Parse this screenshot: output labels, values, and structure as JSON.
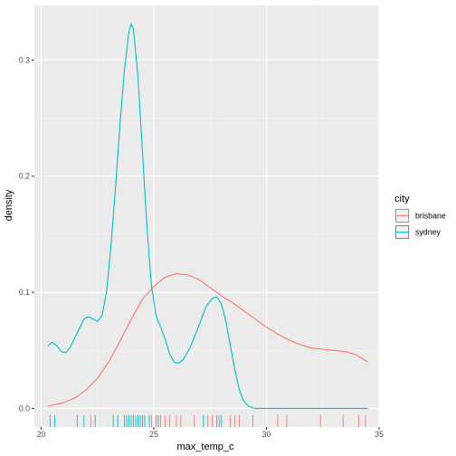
{
  "chart_data": {
    "type": "density",
    "xlabel": "max_temp_c",
    "ylabel": "density",
    "xlim": [
      19.7,
      35.0
    ],
    "ylim": [
      -0.016,
      0.347
    ],
    "x_ticks": [
      20,
      25,
      30,
      35
    ],
    "x_tick_labels": [
      "20",
      "25",
      "30",
      "35"
    ],
    "y_ticks": [
      0.0,
      0.1,
      0.2,
      0.3
    ],
    "y_tick_labels": [
      "0.0",
      "0.1",
      "0.2",
      "0.3"
    ],
    "grid": true,
    "legend": {
      "title": "city",
      "placement": "right",
      "entries": [
        "brisbane",
        "sydney"
      ]
    },
    "series": [
      {
        "name": "brisbane",
        "color": "#F8766D",
        "points": [
          [
            20.3,
            0.002
          ],
          [
            21.0,
            0.005
          ],
          [
            21.5,
            0.009
          ],
          [
            22.0,
            0.016
          ],
          [
            22.5,
            0.026
          ],
          [
            23.0,
            0.04
          ],
          [
            23.5,
            0.058
          ],
          [
            24.0,
            0.077
          ],
          [
            24.5,
            0.094
          ],
          [
            25.0,
            0.105
          ],
          [
            25.5,
            0.113
          ],
          [
            26.0,
            0.116
          ],
          [
            26.5,
            0.115
          ],
          [
            27.0,
            0.111
          ],
          [
            27.5,
            0.104
          ],
          [
            28.0,
            0.097
          ],
          [
            28.5,
            0.091
          ],
          [
            29.0,
            0.084
          ],
          [
            29.5,
            0.077
          ],
          [
            30.0,
            0.07
          ],
          [
            30.5,
            0.064
          ],
          [
            31.0,
            0.059
          ],
          [
            31.5,
            0.055
          ],
          [
            32.0,
            0.052
          ],
          [
            32.5,
            0.051
          ],
          [
            33.0,
            0.05
          ],
          [
            33.5,
            0.049
          ],
          [
            34.0,
            0.046
          ],
          [
            34.5,
            0.04
          ]
        ],
        "rug": [
          22.2,
          24.9,
          25.1,
          25.3,
          25.5,
          25.7,
          26.0,
          26.2,
          26.8,
          27.4,
          27.6,
          27.9,
          28.4,
          28.6,
          28.8,
          29.4,
          30.5,
          30.9,
          32.4,
          33.4,
          34.1,
          34.4
        ]
      },
      {
        "name": "sydney",
        "color": "#00BFC4",
        "points": [
          [
            20.3,
            0.054
          ],
          [
            20.5,
            0.057
          ],
          [
            20.7,
            0.054
          ],
          [
            20.9,
            0.049
          ],
          [
            21.1,
            0.048
          ],
          [
            21.3,
            0.053
          ],
          [
            21.6,
            0.065
          ],
          [
            21.9,
            0.077
          ],
          [
            22.1,
            0.079
          ],
          [
            22.3,
            0.077
          ],
          [
            22.5,
            0.075
          ],
          [
            22.7,
            0.08
          ],
          [
            22.9,
            0.1
          ],
          [
            23.1,
            0.14
          ],
          [
            23.3,
            0.19
          ],
          [
            23.5,
            0.245
          ],
          [
            23.7,
            0.292
          ],
          [
            23.9,
            0.325
          ],
          [
            24.0,
            0.331
          ],
          [
            24.1,
            0.326
          ],
          [
            24.3,
            0.285
          ],
          [
            24.5,
            0.22
          ],
          [
            24.7,
            0.155
          ],
          [
            24.9,
            0.105
          ],
          [
            25.1,
            0.08
          ],
          [
            25.3,
            0.07
          ],
          [
            25.5,
            0.06
          ],
          [
            25.7,
            0.047
          ],
          [
            25.9,
            0.04
          ],
          [
            26.1,
            0.039
          ],
          [
            26.3,
            0.042
          ],
          [
            26.6,
            0.052
          ],
          [
            27.0,
            0.071
          ],
          [
            27.3,
            0.087
          ],
          [
            27.6,
            0.095
          ],
          [
            27.8,
            0.096
          ],
          [
            28.0,
            0.09
          ],
          [
            28.2,
            0.075
          ],
          [
            28.4,
            0.054
          ],
          [
            28.6,
            0.033
          ],
          [
            28.8,
            0.016
          ],
          [
            29.0,
            0.006
          ],
          [
            29.2,
            0.002
          ],
          [
            29.5,
            0.0
          ],
          [
            30.0,
            0.0
          ],
          [
            31.0,
            0.0
          ],
          [
            32.0,
            0.0
          ],
          [
            33.0,
            0.0
          ],
          [
            34.0,
            0.0
          ],
          [
            34.5,
            0.0
          ]
        ],
        "rug": [
          20.4,
          20.6,
          21.6,
          21.9,
          22.4,
          23.2,
          23.4,
          23.7,
          23.8,
          23.9,
          24.0,
          24.1,
          24.2,
          24.3,
          24.4,
          24.5,
          24.6,
          24.8,
          25.2,
          27.2,
          27.8,
          28.0
        ]
      }
    ]
  }
}
